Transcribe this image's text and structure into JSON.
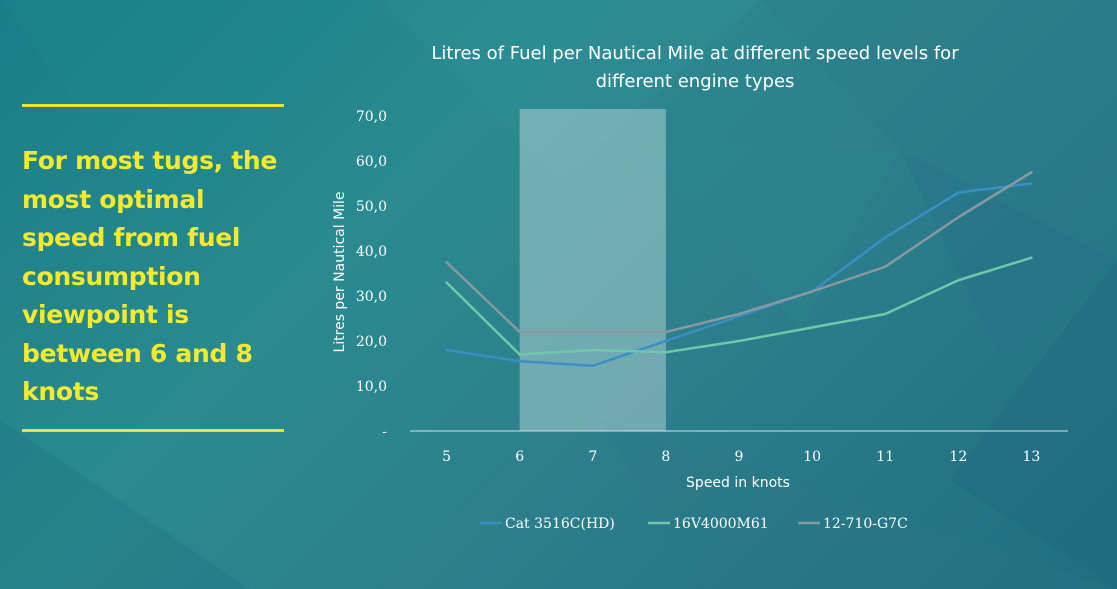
{
  "callout": {
    "text": "For most tugs, the most optimal speed from fuel consumption viewpoint is between 6 and 8 knots",
    "color": "#f2ea2e"
  },
  "chart_data": {
    "type": "line",
    "title": "Litres of Fuel per Nautical Mile at different speed levels for different engine types",
    "xlabel": "Speed in knots",
    "ylabel": "Litres per Nautical Mile",
    "categories": [
      "5",
      "6",
      "7",
      "8",
      "9",
      "10",
      "11",
      "12",
      "13"
    ],
    "y_tick_labels": [
      "-",
      "10,0",
      "20,0",
      "30,0",
      "40,0",
      "50,0",
      "60,0",
      "70,0"
    ],
    "ylim": [
      0,
      70
    ],
    "highlight_band": {
      "from": "6",
      "to": "8"
    },
    "legend_position": "bottom",
    "grid": false,
    "series": [
      {
        "name": "Cat 3516C(HD)",
        "color": "#3a8fc4",
        "values": [
          18,
          15.5,
          14.5,
          20,
          25.5,
          31,
          43,
          53,
          55
        ]
      },
      {
        "name": "16V4000M61",
        "color": "#6fc8a8",
        "values": [
          33,
          17,
          18,
          17.5,
          20,
          23,
          26,
          33.5,
          38.5
        ]
      },
      {
        "name": "12-710-G7C",
        "color": "#8a98a0",
        "values": [
          37.5,
          22,
          22,
          22,
          26,
          31,
          36.5,
          47.5,
          57.5
        ]
      }
    ]
  }
}
